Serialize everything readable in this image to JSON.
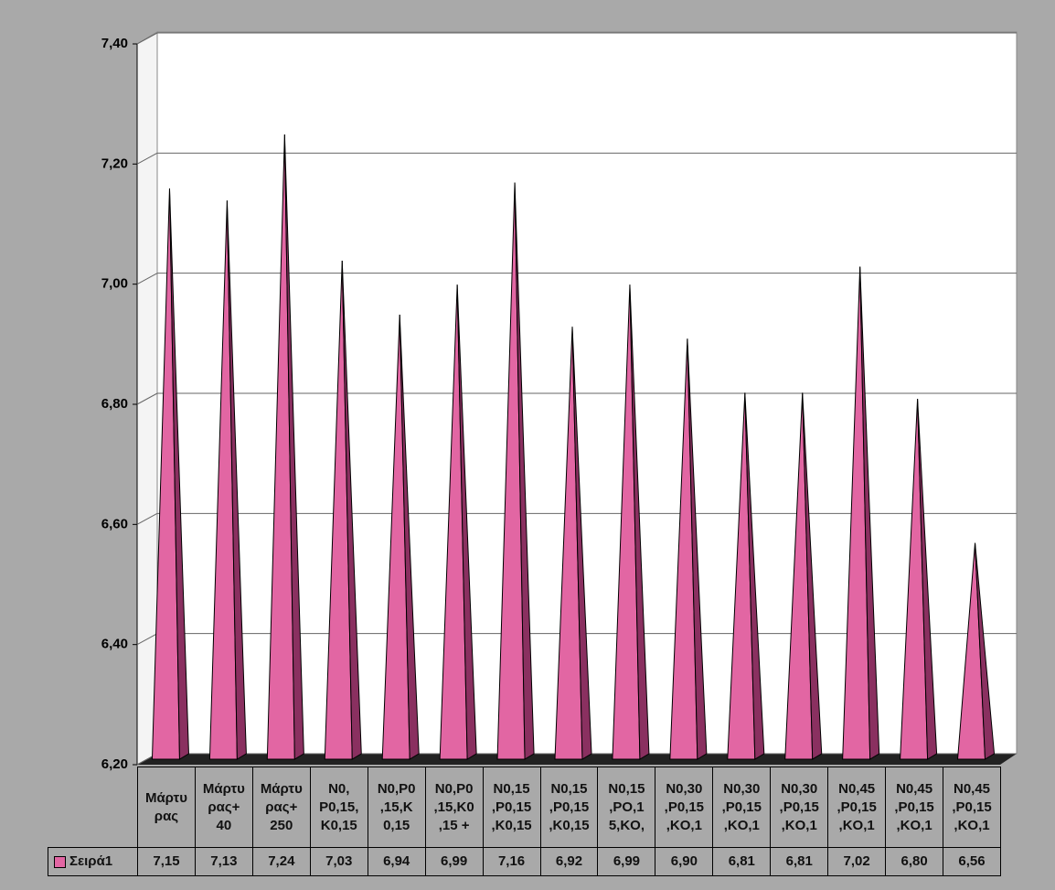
{
  "chart_data": {
    "type": "pyramid",
    "categories": [
      "Μάρτυ\nρας",
      "Μάρτυ\nρας+\n40",
      "Μάρτυ\nρας+\n250",
      "N0,\nP0,15,\nK0,15",
      "N0,P0\n,15,K\n0,15",
      "N0,P0\n,15,K0\n,15 +",
      "N0,15\n,P0,15\n,K0,15",
      "N0,15\n,P0,15\n,K0,15",
      "N0,15\n,PO,1\n5,KO,",
      "N0,30\n,P0,15\n,KO,1",
      "N0,30\n,P0,15\n,KO,1",
      "N0,30\n,P0,15\n,KO,1",
      "N0,45\n,P0,15\n,KO,1",
      "N0,45\n,P0,15\n,KO,1",
      "N0,45\n,P0,15\n,KO,1"
    ],
    "series": [
      {
        "name": "Σειρά1",
        "color": "#e266a3",
        "values": [
          7.15,
          7.13,
          7.24,
          7.03,
          6.94,
          6.99,
          7.16,
          6.92,
          6.99,
          6.9,
          6.81,
          6.81,
          7.02,
          6.8,
          6.56
        ],
        "value_labels": [
          "7,15",
          "7,13",
          "7,24",
          "7,03",
          "6,94",
          "6,99",
          "7,16",
          "6,92",
          "6,99",
          "6,90",
          "6,81",
          "6,81",
          "7,02",
          "6,80",
          "6,56"
        ]
      }
    ],
    "ylim": [
      6.2,
      7.4
    ],
    "yticks": [
      {
        "value": 6.2,
        "label": "6,20"
      },
      {
        "value": 6.4,
        "label": "6,40"
      },
      {
        "value": 6.6,
        "label": "6,60"
      },
      {
        "value": 6.8,
        "label": "6,80"
      },
      {
        "value": 7.0,
        "label": "7,00"
      },
      {
        "value": 7.2,
        "label": "7,20"
      },
      {
        "value": 7.4,
        "label": "7,40"
      }
    ],
    "grid": true
  }
}
